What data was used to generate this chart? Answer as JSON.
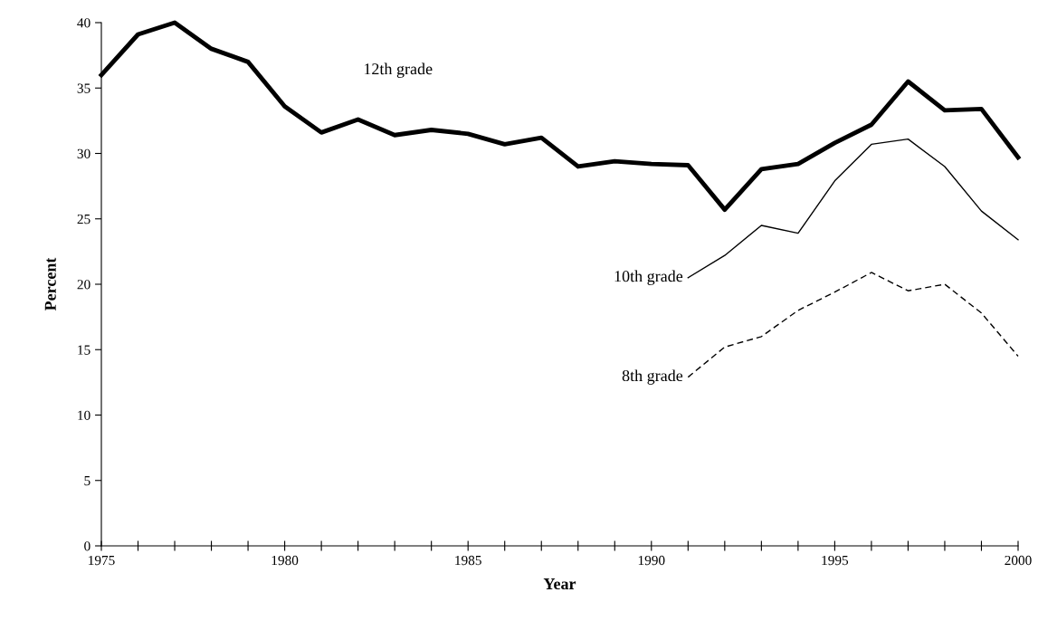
{
  "chart_data": {
    "type": "line",
    "xlabel": "Year",
    "ylabel": "Percent",
    "xlim": [
      1975,
      2000
    ],
    "ylim": [
      0,
      40
    ],
    "xticks": [
      1975,
      {
        "value": 1976,
        "label": null
      },
      {
        "value": 1977,
        "label": null
      },
      {
        "value": 1978,
        "label": null
      },
      {
        "value": 1979,
        "label": null
      },
      1980,
      {
        "value": 1981,
        "label": null
      },
      {
        "value": 1982,
        "label": null
      },
      {
        "value": 1983,
        "label": null
      },
      {
        "value": 1984,
        "label": null
      },
      1985,
      {
        "value": 1986,
        "label": null
      },
      {
        "value": 1987,
        "label": null
      },
      {
        "value": 1988,
        "label": null
      },
      {
        "value": 1989,
        "label": null
      },
      1990,
      {
        "value": 1991,
        "label": null
      },
      {
        "value": 1992,
        "label": null
      },
      {
        "value": 1993,
        "label": null
      },
      {
        "value": 1994,
        "label": null
      },
      1995,
      {
        "value": 1996,
        "label": null
      },
      {
        "value": 1997,
        "label": null
      },
      {
        "value": 1998,
        "label": null
      },
      {
        "value": 1999,
        "label": null
      },
      2000
    ],
    "yticks": [
      0,
      5,
      10,
      15,
      20,
      25,
      30,
      35,
      40
    ],
    "grid": false,
    "legend": false,
    "marker": "none",
    "series": [
      {
        "name": "12th grade",
        "color": "#000000",
        "line_style": "solid",
        "x": [
          1975,
          1976,
          1977,
          1978,
          1979,
          1980,
          1981,
          1982,
          1983,
          1984,
          1985,
          1986,
          1987,
          1988,
          1989,
          1990,
          1991,
          1992,
          1993,
          1994,
          1995,
          1996,
          1997,
          1998,
          1999,
          2000
        ],
        "values": [
          36.0,
          39.1,
          40.0,
          38.0,
          37.0,
          33.6,
          31.6,
          32.6,
          31.4,
          31.8,
          31.5,
          30.7,
          31.2,
          29.0,
          29.4,
          29.2,
          29.1,
          25.7,
          28.8,
          29.2,
          30.8,
          32.2,
          35.5,
          33.3,
          33.4,
          29.7
        ]
      },
      {
        "name": "10th grade",
        "color": "#000000",
        "line_style": "solid",
        "x": [
          1991,
          1992,
          1993,
          1994,
          1995,
          1996,
          1997,
          1998,
          1999,
          2000
        ],
        "values": [
          20.5,
          22.2,
          24.5,
          23.9,
          27.9,
          30.7,
          31.1,
          29.0,
          25.6,
          23.4
        ]
      },
      {
        "name": "8th grade",
        "color": "#000000",
        "line_style": "dashed",
        "x": [
          1991,
          1992,
          1993,
          1994,
          1995,
          1996,
          1997,
          1998,
          1999,
          2000
        ],
        "values": [
          12.9,
          15.2,
          16.0,
          18.0,
          19.4,
          20.9,
          19.5,
          20.0,
          17.8,
          14.5
        ]
      }
    ]
  }
}
